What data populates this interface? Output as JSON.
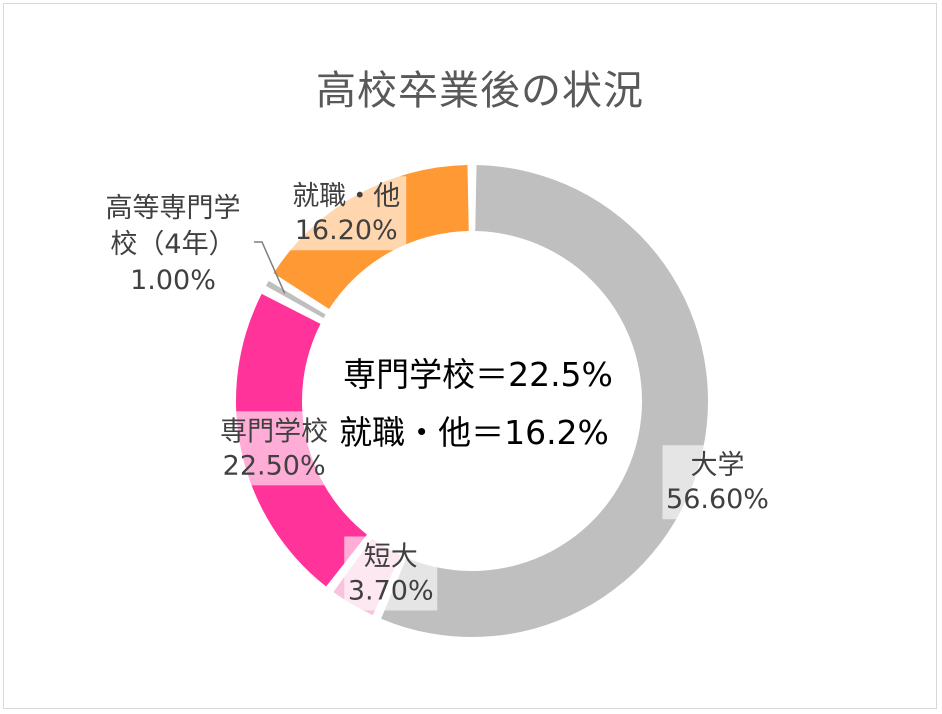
{
  "chart_data": {
    "type": "pie",
    "variant": "donut",
    "title": "高校卒業後の状況",
    "slices": [
      {
        "name": "大学",
        "value": 56.6,
        "label": "56.60%",
        "color": "#bfbfbf"
      },
      {
        "name": "短大",
        "value": 3.7,
        "label": "3.70%",
        "color": "#f9c2dd"
      },
      {
        "name": "専門学校",
        "value": 22.5,
        "label": "22.50%",
        "color": "#ff3399"
      },
      {
        "name": "高等専門学校（4年）",
        "value": 1.0,
        "label": "1.00%",
        "color": "#bfbfbf"
      },
      {
        "name": "就職・他",
        "value": 16.2,
        "label": "16.20%",
        "color": "#ff9933"
      }
    ],
    "annotations": [
      "専門学校＝22.5%",
      "就職・他＝16.2%"
    ]
  }
}
